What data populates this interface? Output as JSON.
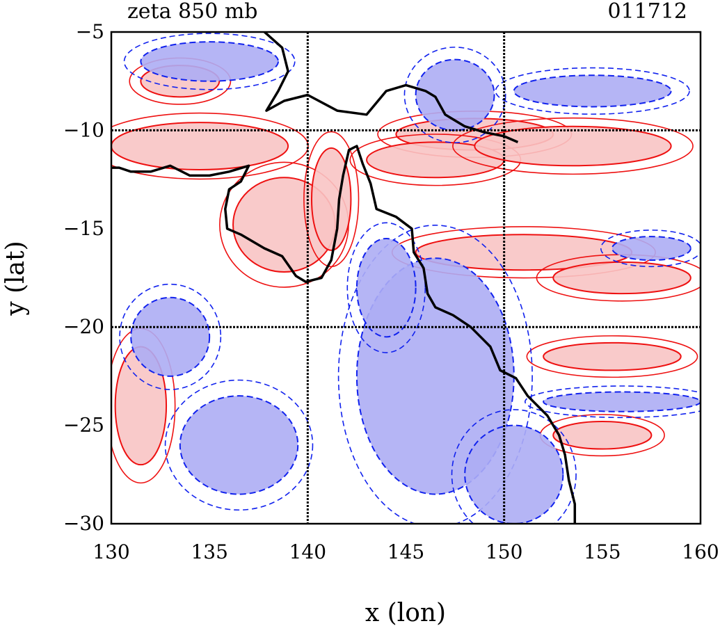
{
  "figure": {
    "title_left": "zeta 850 mb",
    "title_right": "011712",
    "xlabel": "x (lon)",
    "ylabel": "y (lat)"
  },
  "colors": {
    "positive_line": "#ee1111",
    "positive_fill": "#f8c4c4",
    "negative_line": "#1122ee",
    "negative_fill": "#adadf4",
    "coastline": "#000000",
    "grid": "#000000"
  },
  "chart_data": {
    "type": "contour",
    "title": "zeta 850 mb",
    "subtitle": "011712",
    "xlabel": "x (lon)",
    "ylabel": "y (lat)",
    "xlim": [
      130,
      160
    ],
    "ylim": [
      -30,
      -5
    ],
    "xticks": [
      130,
      135,
      140,
      145,
      150,
      155,
      160
    ],
    "yticks": [
      -5,
      -10,
      -15,
      -20,
      -25,
      -30
    ],
    "xtick_labels": [
      "130",
      "135",
      "140",
      "145",
      "150",
      "155",
      "160"
    ],
    "ytick_labels": [
      "−5",
      "−10",
      "−15",
      "−20",
      "−25",
      "−30"
    ],
    "gridlines_x": [
      140,
      150
    ],
    "gridlines_y": [
      -10,
      -20
    ],
    "grid": true,
    "legend": "none",
    "coastline": [
      [
        130,
        -11.9
      ],
      [
        130.4,
        -11.9
      ],
      [
        131,
        -12.1
      ],
      [
        132,
        -12.1
      ],
      [
        133,
        -11.8
      ],
      [
        134,
        -12.3
      ],
      [
        135,
        -12.3
      ],
      [
        136,
        -12.1
      ],
      [
        137,
        -11.8
      ],
      [
        136.6,
        -12.6
      ],
      [
        136,
        -13
      ],
      [
        135.8,
        -14
      ],
      [
        135.9,
        -15
      ],
      [
        136.6,
        -15.3
      ],
      [
        137.8,
        -16
      ],
      [
        138.7,
        -16.4
      ],
      [
        139.4,
        -17.4
      ],
      [
        139.9,
        -17.7
      ],
      [
        140.7,
        -17.5
      ],
      [
        141.2,
        -16.6
      ],
      [
        141.5,
        -15
      ],
      [
        141.6,
        -13.5
      ],
      [
        141.8,
        -12.3
      ],
      [
        142.1,
        -11
      ],
      [
        142.5,
        -10.8
      ],
      [
        142.8,
        -11.7
      ],
      [
        143.2,
        -12.7
      ],
      [
        143.5,
        -14
      ],
      [
        144.5,
        -14.4
      ],
      [
        145.3,
        -15
      ],
      [
        145.4,
        -16.2
      ],
      [
        145.9,
        -17
      ],
      [
        146.1,
        -18.3
      ],
      [
        146.5,
        -19
      ],
      [
        147.4,
        -19.4
      ],
      [
        148.3,
        -20
      ],
      [
        148.8,
        -20.5
      ],
      [
        149.3,
        -21
      ],
      [
        149.8,
        -22.2
      ],
      [
        150.6,
        -22.6
      ],
      [
        151.2,
        -23.5
      ],
      [
        152.2,
        -24.5
      ],
      [
        152.8,
        -25.5
      ],
      [
        153.1,
        -26.5
      ],
      [
        153.3,
        -27.8
      ],
      [
        153.6,
        -29
      ],
      [
        153.6,
        -30
      ]
    ],
    "coastline_png": [
      [
        137.8,
        -5
      ],
      [
        138.7,
        -5.8
      ],
      [
        139,
        -7
      ],
      [
        138.5,
        -8
      ],
      [
        137.9,
        -9
      ],
      [
        138.8,
        -8.5
      ],
      [
        140,
        -8.2
      ],
      [
        141.5,
        -9
      ],
      [
        143,
        -9.2
      ],
      [
        144,
        -8
      ],
      [
        145,
        -7.7
      ],
      [
        146,
        -8
      ],
      [
        146.5,
        -8.3
      ],
      [
        147,
        -9.2
      ],
      [
        148,
        -9.8
      ],
      [
        149,
        -10.1
      ],
      [
        150,
        -10.3
      ],
      [
        150.7,
        -10.6
      ]
    ],
    "features": [
      {
        "sign": "positive",
        "lon": 134.5,
        "lat": -10.8,
        "rx": 4.5,
        "ry": 1.2
      },
      {
        "sign": "positive",
        "lon": 148.5,
        "lat": -10.2,
        "rx": 4.0,
        "ry": 0.8
      },
      {
        "sign": "positive",
        "lon": 138.8,
        "lat": -14.8,
        "rx": 2.6,
        "ry": 2.4
      },
      {
        "sign": "positive",
        "lon": 141.2,
        "lat": -13.5,
        "rx": 1.0,
        "ry": 2.6
      },
      {
        "sign": "positive",
        "lon": 146.5,
        "lat": -11.5,
        "rx": 3.5,
        "ry": 0.9
      },
      {
        "sign": "positive",
        "lon": 151.0,
        "lat": -16.2,
        "rx": 5.5,
        "ry": 0.9
      },
      {
        "sign": "positive",
        "lon": 156.0,
        "lat": -17.5,
        "rx": 3.5,
        "ry": 0.8
      },
      {
        "sign": "positive",
        "lon": 155.5,
        "lat": -21.5,
        "rx": 3.5,
        "ry": 0.7
      },
      {
        "sign": "positive",
        "lon": 155.0,
        "lat": -25.5,
        "rx": 2.5,
        "ry": 0.7
      },
      {
        "sign": "positive",
        "lon": 153.5,
        "lat": -10.8,
        "rx": 5.0,
        "ry": 1.0
      },
      {
        "sign": "positive",
        "lon": 133.5,
        "lat": -7.5,
        "rx": 2.0,
        "ry": 0.8
      },
      {
        "sign": "positive",
        "lon": 131.5,
        "lat": -24.0,
        "rx": 1.3,
        "ry": 3.0
      },
      {
        "sign": "negative",
        "lon": 146.5,
        "lat": -22.5,
        "rx": 4.0,
        "ry": 6.0
      },
      {
        "sign": "negative",
        "lon": 144.0,
        "lat": -18.0,
        "rx": 1.5,
        "ry": 2.5
      },
      {
        "sign": "negative",
        "lon": 150.5,
        "lat": -27.5,
        "rx": 2.5,
        "ry": 2.5
      },
      {
        "sign": "negative",
        "lon": 156.0,
        "lat": -23.8,
        "rx": 4.0,
        "ry": 0.5
      },
      {
        "sign": "negative",
        "lon": 154.5,
        "lat": -8.0,
        "rx": 4.0,
        "ry": 0.8
      },
      {
        "sign": "negative",
        "lon": 147.5,
        "lat": -8.2,
        "rx": 2.0,
        "ry": 1.8
      },
      {
        "sign": "negative",
        "lon": 135.0,
        "lat": -6.5,
        "rx": 3.5,
        "ry": 1.0
      },
      {
        "sign": "negative",
        "lon": 136.5,
        "lat": -26.0,
        "rx": 3.0,
        "ry": 2.5
      },
      {
        "sign": "negative",
        "lon": 133.0,
        "lat": -20.5,
        "rx": 2.0,
        "ry": 2.0
      },
      {
        "sign": "negative",
        "lon": 157.5,
        "lat": -16.0,
        "rx": 2.0,
        "ry": 0.6
      }
    ]
  }
}
